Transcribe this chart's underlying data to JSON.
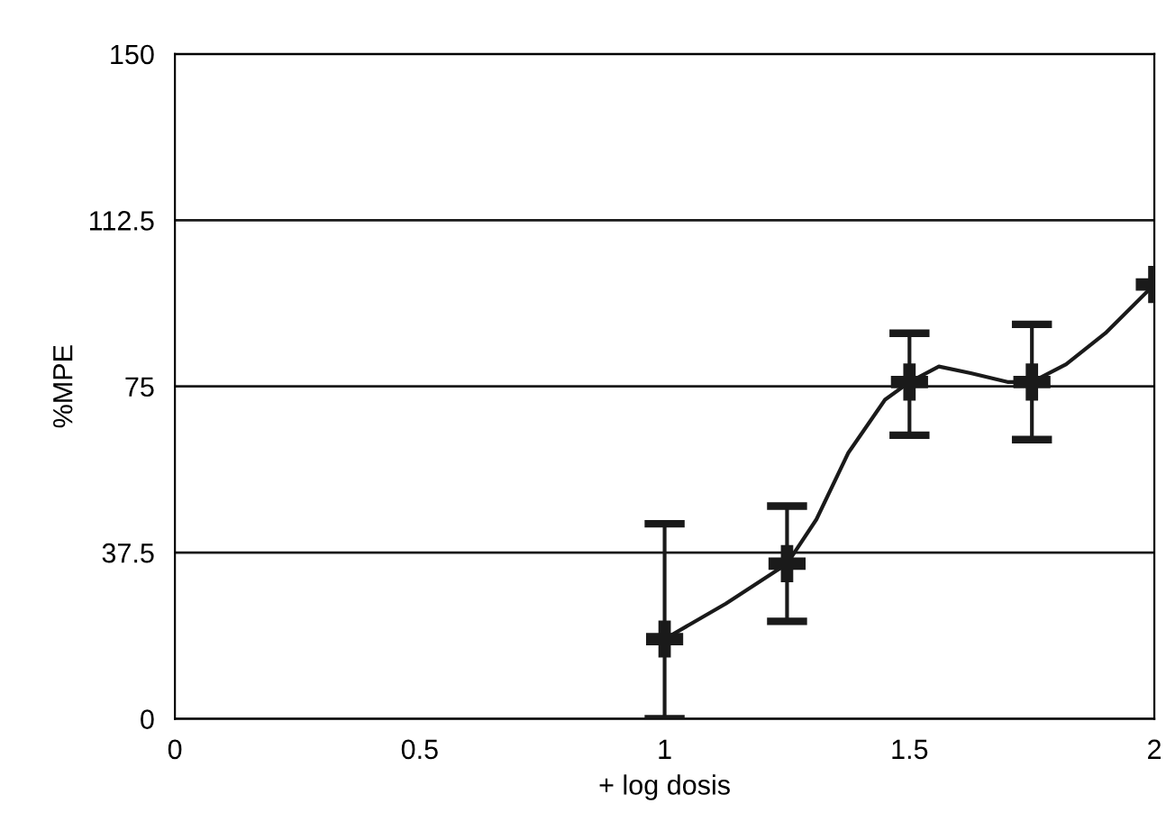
{
  "chart_data": {
    "type": "scatter",
    "xlabel": "+ log dosis",
    "ylabel": "%MPE",
    "xlim": [
      0,
      2
    ],
    "xticks": [
      0,
      0.5,
      1,
      1.5,
      2
    ],
    "ylim": [
      0,
      150
    ],
    "yticks": [
      0,
      37.5,
      75,
      112.5,
      150
    ],
    "grid": "y",
    "marker": "cross",
    "x": [
      1,
      1.25,
      1.5,
      1.75,
      2
    ],
    "series": [
      {
        "color": "#1a1a1a",
        "values": [
          18,
          35,
          76,
          76,
          98
        ],
        "errors": [
          [
            0,
            44
          ],
          [
            22,
            48
          ],
          [
            64,
            87
          ],
          [
            63,
            89
          ],
          null
        ]
      },
      {
        "type": "line",
        "color": "#1a1a1a",
        "marker": "none",
        "line_style": "solid",
        "x": [
          1,
          1.125,
          1.25,
          1.31,
          1.375,
          1.45,
          1.5,
          1.56,
          1.625,
          1.7,
          1.75,
          1.82,
          1.9,
          2
        ],
        "values": [
          18,
          26,
          35,
          45,
          60,
          72,
          76,
          79.5,
          78,
          76,
          76,
          80,
          87,
          98
        ]
      }
    ]
  }
}
